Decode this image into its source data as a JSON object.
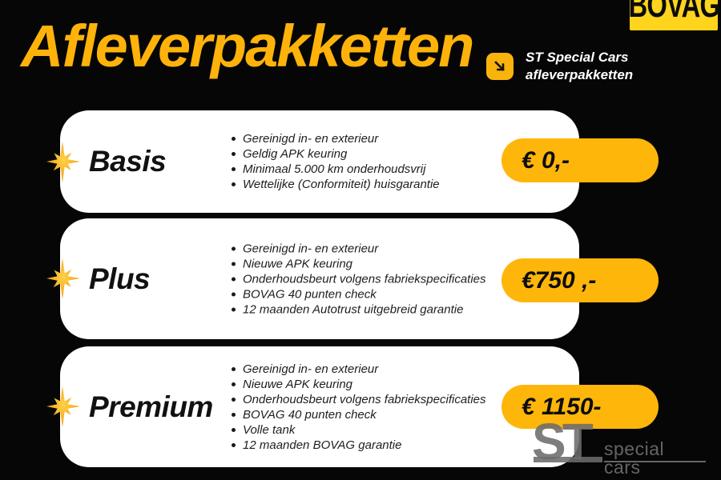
{
  "header": {
    "title": "Afleverpakketten"
  },
  "bovag_logo": {
    "text": "BOVAG"
  },
  "intro": {
    "icon": "arrow-down-right-icon",
    "line1": "ST Special Cars",
    "line2": "afleverpakketten"
  },
  "packages": [
    {
      "name": "Basis",
      "price": "€ 0,-",
      "features": [
        "Gereinigd in- en exterieur",
        "Geldig APK keuring",
        "Minimaal 5.000 km onderhoudsvrij",
        "Wettelijke (Conformiteit) huisgarantie"
      ]
    },
    {
      "name": "Plus",
      "price": "€750 ,-",
      "features": [
        "Gereinigd in- en exterieur",
        "Nieuwe APK keuring",
        "Onderhoudsbeurt volgens fabriekspecificaties",
        "BOVAG 40 punten check",
        "12 maanden Autotrust uitgebreid garantie"
      ]
    },
    {
      "name": "Premium",
      "price": "€ 1150-",
      "features": [
        "Gereinigd in- en exterieur",
        "Nieuwe APK keuring",
        "Onderhoudsbeurt volgens fabriekspecificaties",
        "BOVAG 40 punten check",
        "Volle tank",
        "12 maanden BOVAG garantie"
      ]
    }
  ],
  "footer_logo": {
    "st": "ST",
    "text": "special cars"
  },
  "colors": {
    "background": "#060606",
    "accent_yellow": "#FFB60B",
    "title_yellow": "#FFB30A",
    "bovag_yellow": "#FFD41C",
    "card_white": "#FFFFFF",
    "logo_gray": "#6C6C6C"
  }
}
